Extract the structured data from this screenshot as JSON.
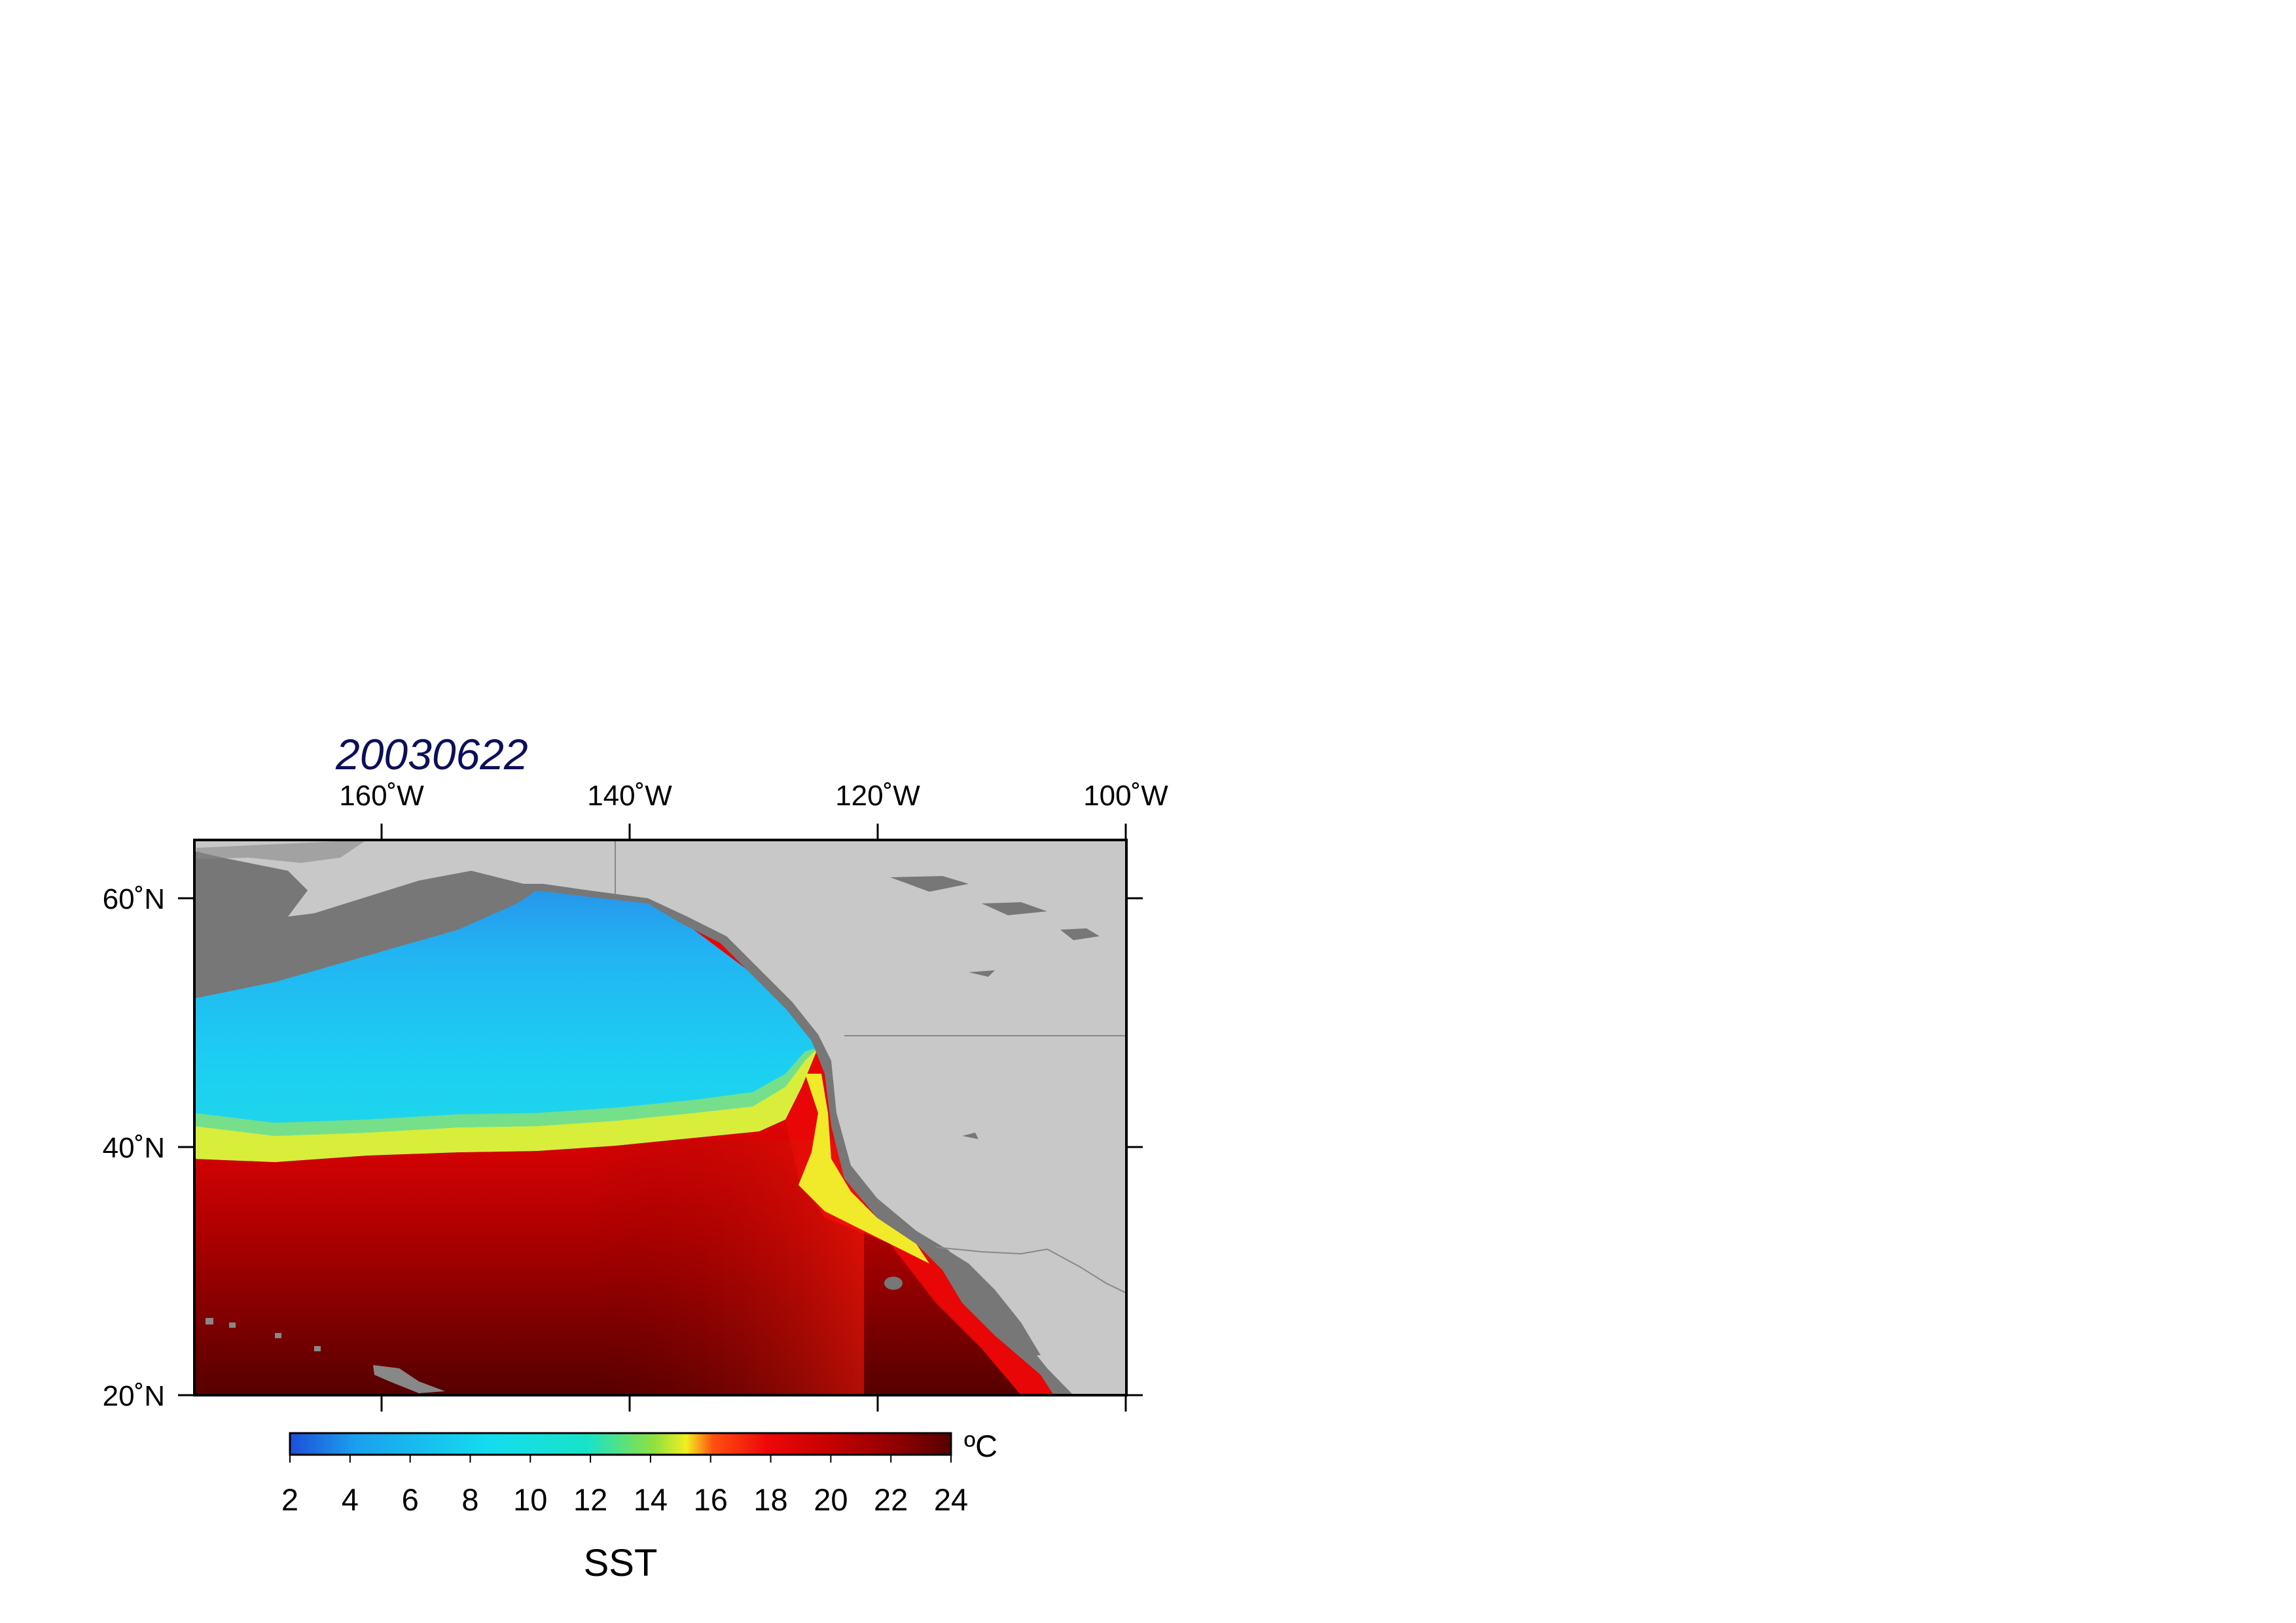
{
  "title": "20030622",
  "map": {
    "lon_ticks": [
      "160˚W",
      "140˚W",
      "120˚W",
      "100˚W"
    ],
    "lat_ticks": [
      "60˚N",
      "40˚N",
      "20˚N"
    ],
    "lon_range": [
      -175,
      -100
    ],
    "lat_range": [
      20,
      65
    ],
    "variable": "SST",
    "land_color": "#c8c8c8",
    "shelf_color": "#7a7a7a"
  },
  "colorbar": {
    "labels": [
      "2",
      "4",
      "6",
      "8",
      "10",
      "12",
      "14",
      "16",
      "18",
      "20",
      "22",
      "24"
    ],
    "unit": "ºC",
    "range": [
      2,
      24
    ],
    "label": "SST",
    "colors": [
      "#1f4fd8",
      "#1aa0ee",
      "#14dcf0",
      "#18e3c8",
      "#8ee040",
      "#f2ee20",
      "#ff5010",
      "#ee0808",
      "#c40000",
      "#8e0000",
      "#560000"
    ]
  }
}
